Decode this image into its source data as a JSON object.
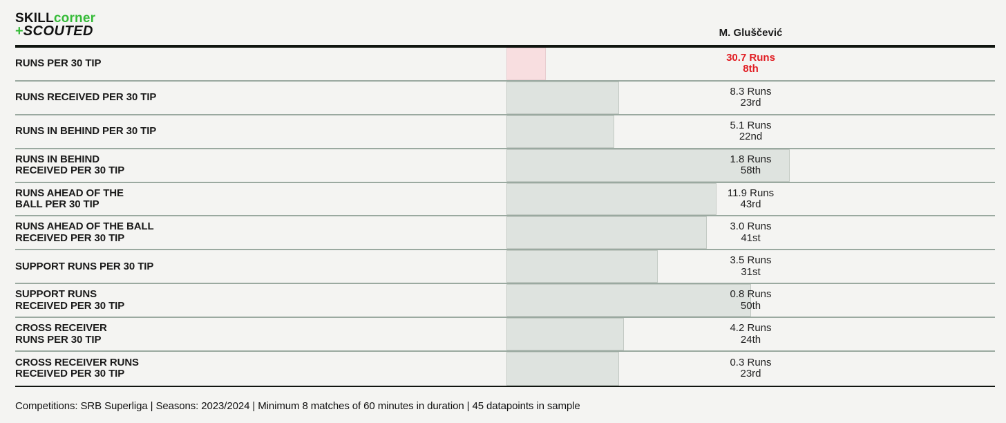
{
  "logo": {
    "skill": "SKILL",
    "corner": "corner",
    "plus": "+",
    "scouted": "SCOUTED"
  },
  "header": {
    "player_name": "M. Gluščević"
  },
  "chart_data": {
    "type": "bar",
    "orientation": "horizontal",
    "title": "Run metrics percentile chart",
    "player": "M. Gluščević",
    "axis_note": "Bar length encodes percentile rank, 0-100",
    "xlim": [
      0,
      100
    ],
    "highlight_color": "#e11d23",
    "rows": [
      {
        "label_lines": [
          "RUNS PER 30 TIP"
        ],
        "value": "30.7 Runs",
        "value_runs": 30.7,
        "percentile": 8,
        "percentile_label": "8th",
        "highlight": true
      },
      {
        "label_lines": [
          "RUNS RECEIVED PER 30 TIP"
        ],
        "value": "8.3 Runs",
        "value_runs": 8.3,
        "percentile": 23,
        "percentile_label": "23rd",
        "highlight": false
      },
      {
        "label_lines": [
          "RUNS IN BEHIND PER 30 TIP"
        ],
        "value": "5.1 Runs",
        "value_runs": 5.1,
        "percentile": 22,
        "percentile_label": "22nd",
        "highlight": false
      },
      {
        "label_lines": [
          "RUNS IN BEHIND",
          "RECEIVED PER 30 TIP"
        ],
        "value": "1.8 Runs",
        "value_runs": 1.8,
        "percentile": 58,
        "percentile_label": "58th",
        "highlight": false
      },
      {
        "label_lines": [
          "RUNS AHEAD OF THE",
          "BALL PER 30 TIP"
        ],
        "value": "11.9 Runs",
        "value_runs": 11.9,
        "percentile": 43,
        "percentile_label": "43rd",
        "highlight": false
      },
      {
        "label_lines": [
          "RUNS AHEAD OF THE BALL",
          "RECEIVED PER 30 TIP"
        ],
        "value": "3.0 Runs",
        "value_runs": 3.0,
        "percentile": 41,
        "percentile_label": "41st",
        "highlight": false
      },
      {
        "label_lines": [
          "SUPPORT RUNS PER 30 TIP"
        ],
        "value": "3.5 Runs",
        "value_runs": 3.5,
        "percentile": 31,
        "percentile_label": "31st",
        "highlight": false
      },
      {
        "label_lines": [
          "SUPPORT RUNS",
          "RECEIVED PER 30 TIP"
        ],
        "value": "0.8 Runs",
        "value_runs": 0.8,
        "percentile": 50,
        "percentile_label": "50th",
        "highlight": false
      },
      {
        "label_lines": [
          "CROSS RECEIVER",
          "RUNS PER 30 TIP"
        ],
        "value": "4.2 Runs",
        "value_runs": 4.2,
        "percentile": 24,
        "percentile_label": "24th",
        "highlight": false
      },
      {
        "label_lines": [
          "CROSS RECEIVER RUNS",
          "RECEIVED PER 30 TIP"
        ],
        "value": "0.3 Runs",
        "value_runs": 0.3,
        "percentile": 23,
        "percentile_label": "23rd",
        "highlight": false
      }
    ]
  },
  "footer": {
    "text": "Competitions: SRB Superliga | Seasons: 2023/2024 | Minimum 8 matches of 60 minutes in duration | 45 datapoints in sample"
  },
  "colors": {
    "background": "#f4f4f2",
    "bar_default": "#dee3df",
    "bar_highlight": "#f8dee0",
    "value_highlight_text": "#e11d23",
    "logo_green": "#35bb38",
    "divider": "#9aa9a0",
    "heavy_rule": "#101510"
  }
}
